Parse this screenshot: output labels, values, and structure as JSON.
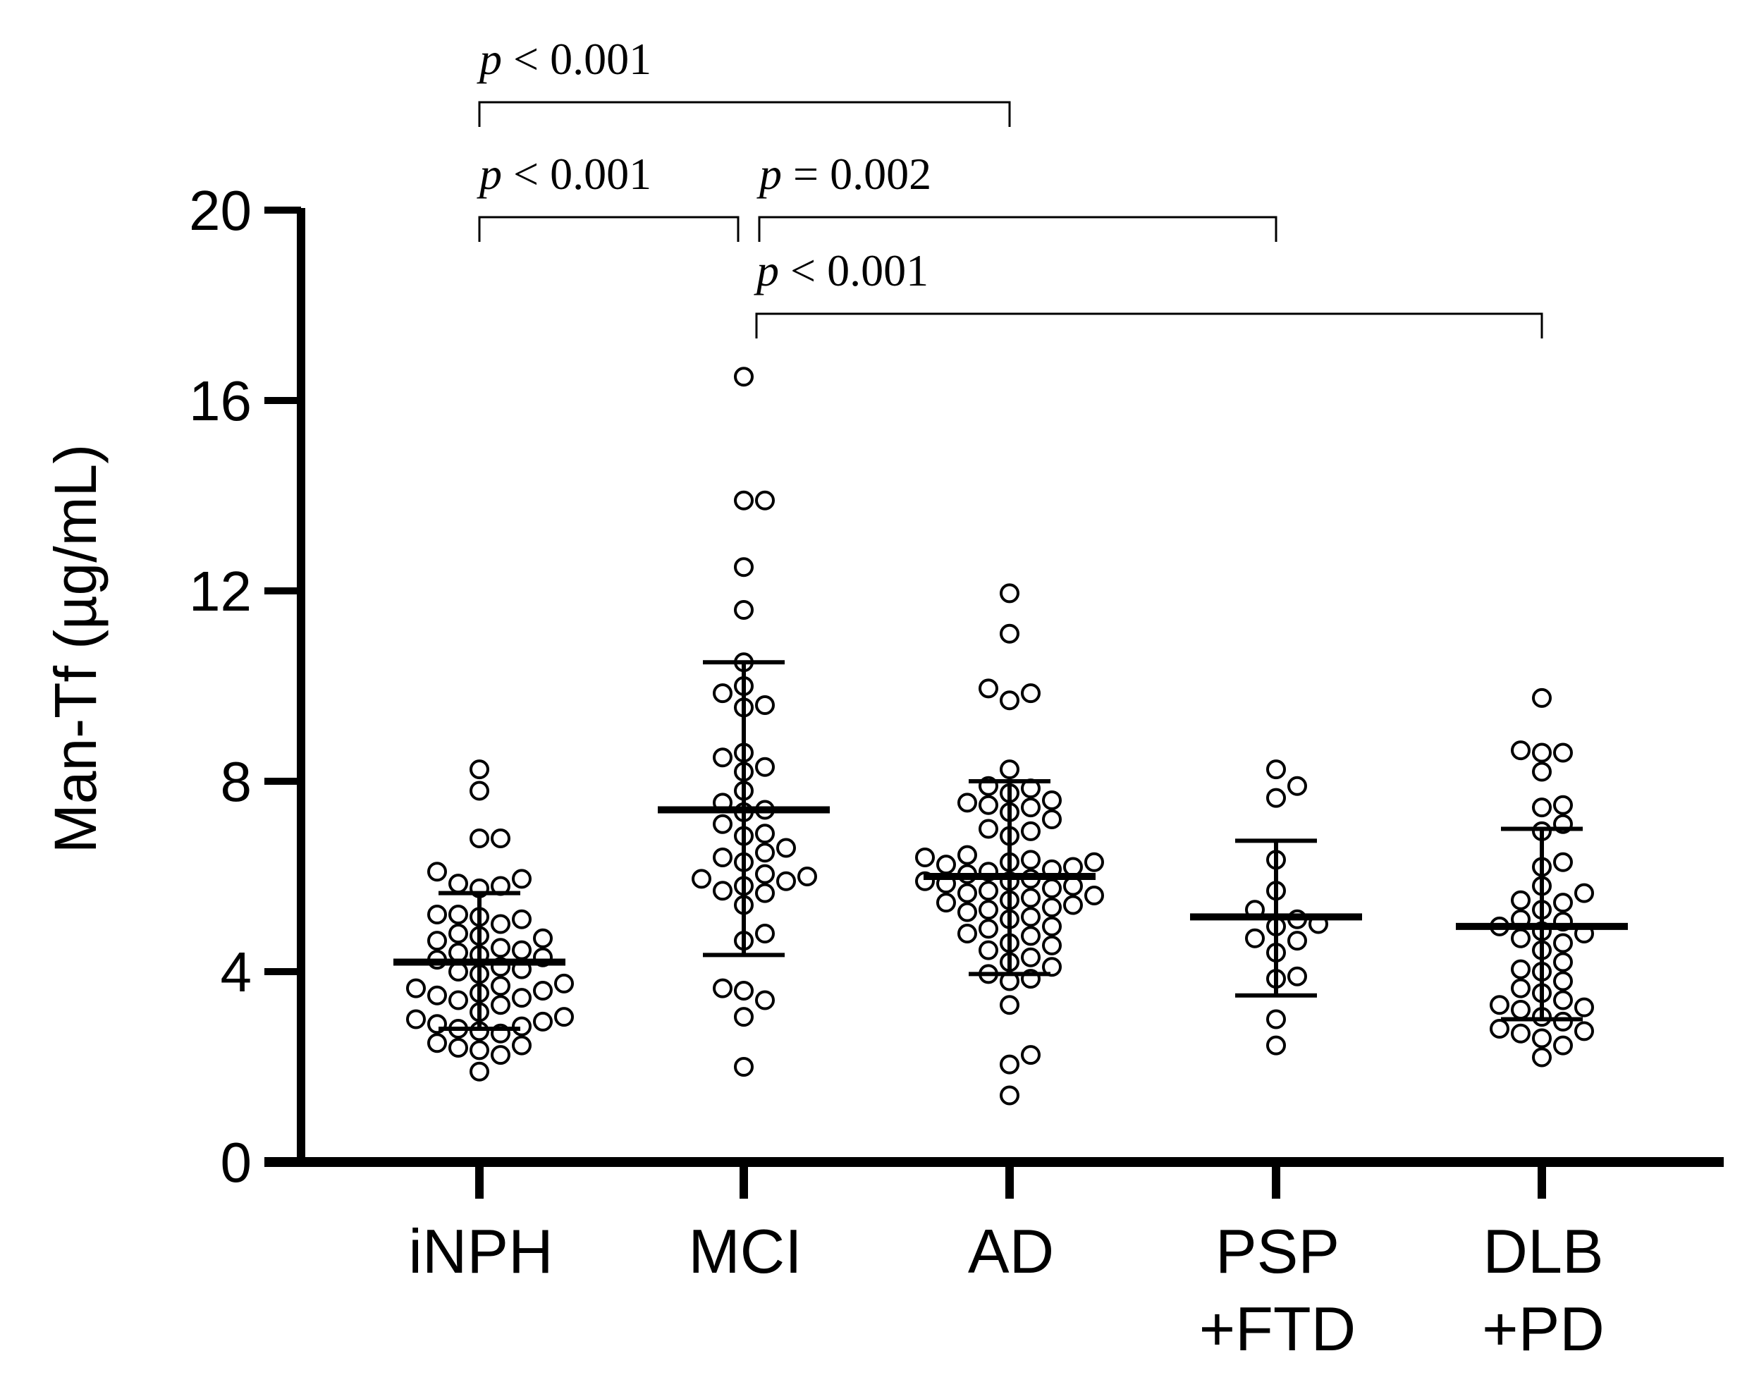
{
  "chart_data": {
    "type": "scatter",
    "subtype": "dot-plot with mean and SD error bars",
    "title": "",
    "ylabel": "Man-Tf  (µg/mL)",
    "xlabel": "",
    "ylim": [
      0,
      20
    ],
    "yticks": [
      "0",
      "4",
      "8",
      "12",
      "16",
      "20"
    ],
    "ytick_values": [
      0,
      4,
      8,
      12,
      16,
      20
    ],
    "groups": [
      {
        "name": "iNPH",
        "label_lines": [
          "iNPH"
        ],
        "mean": 4.2,
        "sd_low": 2.8,
        "sd_high": 5.65,
        "points": [
          8.25,
          7.8,
          6.8,
          6.8,
          6.1,
          5.95,
          5.85,
          5.8,
          5.75,
          5.2,
          5.2,
          5.15,
          5.1,
          5.0,
          4.8,
          4.75,
          4.7,
          4.65,
          4.5,
          4.45,
          4.4,
          4.35,
          4.3,
          4.25,
          4.1,
          4.05,
          4.0,
          3.95,
          3.75,
          3.7,
          3.65,
          3.6,
          3.55,
          3.5,
          3.45,
          3.4,
          3.3,
          3.15,
          3.05,
          3.0,
          2.95,
          2.9,
          2.85,
          2.8,
          2.75,
          2.7,
          2.5,
          2.45,
          2.4,
          2.35,
          2.25,
          1.9
        ]
      },
      {
        "name": "MCI",
        "label_lines": [
          "MCI"
        ],
        "mean": 7.4,
        "sd_low": 4.35,
        "sd_high": 10.5,
        "points": [
          16.5,
          13.9,
          13.9,
          12.5,
          11.6,
          10.5,
          10.0,
          9.85,
          9.6,
          9.55,
          8.6,
          8.5,
          8.3,
          8.2,
          7.8,
          7.55,
          7.4,
          7.35,
          7.1,
          6.9,
          6.85,
          6.6,
          6.5,
          6.4,
          6.3,
          6.05,
          6.0,
          5.95,
          5.9,
          5.8,
          5.7,
          5.65,
          5.4,
          4.8,
          4.65,
          3.65,
          3.6,
          3.4,
          3.05,
          2.0
        ]
      },
      {
        "name": "AD",
        "label_lines": [
          "AD"
        ],
        "mean": 6.0,
        "sd_low": 3.95,
        "sd_high": 8.0,
        "points": [
          11.95,
          11.1,
          9.95,
          9.85,
          9.7,
          8.25,
          7.9,
          7.85,
          7.75,
          7.6,
          7.55,
          7.5,
          7.45,
          7.35,
          7.2,
          7.0,
          6.95,
          6.85,
          6.45,
          6.4,
          6.35,
          6.3,
          6.3,
          6.25,
          6.2,
          6.15,
          6.1,
          6.05,
          5.95,
          5.9,
          5.9,
          5.85,
          5.8,
          5.75,
          5.7,
          5.65,
          5.6,
          5.55,
          5.5,
          5.45,
          5.4,
          5.35,
          5.3,
          5.25,
          5.15,
          5.1,
          4.95,
          4.9,
          4.8,
          4.75,
          4.6,
          4.55,
          4.45,
          4.3,
          4.2,
          4.1,
          3.95,
          3.85,
          3.8,
          3.3,
          2.25,
          2.05,
          1.4
        ]
      },
      {
        "name": "PSP+FTD",
        "label_lines": [
          "PSP",
          "+FTD"
        ],
        "mean": 5.15,
        "sd_low": 3.5,
        "sd_high": 6.75,
        "points": [
          8.25,
          7.9,
          7.65,
          6.35,
          5.7,
          5.3,
          5.1,
          5.0,
          4.95,
          4.7,
          4.65,
          4.4,
          3.9,
          3.85,
          3.0,
          2.45
        ]
      },
      {
        "name": "DLB+PD",
        "label_lines": [
          "DLB",
          "+PD"
        ],
        "mean": 4.95,
        "sd_low": 3.0,
        "sd_high": 7.0,
        "points": [
          9.75,
          8.65,
          8.6,
          8.6,
          8.2,
          7.5,
          7.45,
          7.1,
          6.95,
          6.3,
          6.2,
          5.8,
          5.65,
          5.5,
          5.45,
          5.3,
          5.1,
          5.05,
          4.95,
          4.85,
          4.8,
          4.7,
          4.6,
          4.45,
          4.2,
          4.05,
          4.0,
          3.8,
          3.65,
          3.55,
          3.4,
          3.3,
          3.25,
          3.2,
          3.05,
          2.95,
          2.8,
          2.75,
          2.7,
          2.6,
          2.45,
          2.2
        ]
      }
    ],
    "comparisons": [
      {
        "from": "iNPH",
        "to": "AD",
        "p_symbol": "p",
        "p_text": " < 0.001",
        "level": 3
      },
      {
        "from": "iNPH",
        "to": "MCI",
        "p_symbol": "p",
        "p_text": " < 0.001",
        "level": 2
      },
      {
        "from": "MCI",
        "to": "PSP+FTD",
        "p_symbol": "p",
        "p_text": " = 0.002",
        "level": 2
      },
      {
        "from": "MCI",
        "to": "DLB+PD",
        "p_symbol": "p",
        "p_text": " < 0.001",
        "level": 1
      }
    ]
  }
}
